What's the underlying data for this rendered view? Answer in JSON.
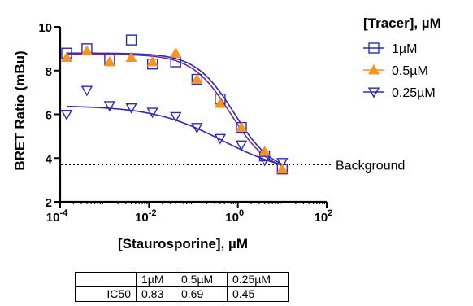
{
  "chart_data": {
    "type": "scatter",
    "xlabel": "[Staurosporine], µM",
    "ylabel": "BRET Ratio (mBu)",
    "xscale": "log",
    "xlim": [
      0.0001,
      100
    ],
    "ylim": [
      2,
      10
    ],
    "x_ticks": [
      {
        "value": 0.0001,
        "base": "10",
        "exp": "-4"
      },
      {
        "value": 0.01,
        "base": "10",
        "exp": "-2"
      },
      {
        "value": 1,
        "base": "10",
        "exp": "0"
      },
      {
        "value": 100,
        "base": "10",
        "exp": "2"
      }
    ],
    "y_ticks": [
      2,
      4,
      6,
      8,
      10
    ],
    "grid": false,
    "legend": {
      "title": "[Tracer], µM",
      "position": "right"
    },
    "series": [
      {
        "name": "1µM",
        "marker": "square",
        "color": "#2b2bb8",
        "fill": "none",
        "x": [
          0.00014,
          0.0004,
          0.0013,
          0.004,
          0.012,
          0.04,
          0.12,
          0.4,
          1.2,
          4,
          10
        ],
        "y": [
          8.8,
          9.0,
          8.5,
          9.4,
          8.3,
          8.4,
          7.6,
          6.7,
          5.4,
          4.1,
          3.5
        ],
        "fit": {
          "top": 8.8,
          "bottom": 3.3,
          "ic50": 0.83,
          "hill": 1
        }
      },
      {
        "name": "0.5µM",
        "marker": "triangle-up",
        "color": "#f7941d",
        "fill": "#f7941d",
        "x": [
          0.00014,
          0.0004,
          0.0013,
          0.004,
          0.012,
          0.04,
          0.12,
          0.4,
          1.2,
          4,
          10
        ],
        "y": [
          8.6,
          8.9,
          8.4,
          8.6,
          8.4,
          8.8,
          7.6,
          6.5,
          5.4,
          4.3,
          3.5
        ],
        "fit": {
          "top": 8.75,
          "bottom": 3.3,
          "ic50": 0.69,
          "hill": 1
        }
      },
      {
        "name": "0.25µM",
        "marker": "triangle-down",
        "color": "#2b2bb8",
        "fill": "none",
        "x": [
          0.00014,
          0.0004,
          0.0013,
          0.004,
          0.012,
          0.04,
          0.12,
          0.4,
          1.2,
          4,
          10
        ],
        "y": [
          6.0,
          7.1,
          6.4,
          6.3,
          6.1,
          5.9,
          5.4,
          4.9,
          4.6,
          3.9,
          3.8
        ],
        "fit": {
          "top": 6.4,
          "bottom": 3.2,
          "ic50": 0.45,
          "hill": 0.55
        }
      }
    ],
    "annotations": [
      {
        "text": "Background",
        "y": 3.7,
        "style": "dotted-line"
      }
    ],
    "table": {
      "columns": [
        "",
        "1µM",
        "0.5µM",
        "0.25µM"
      ],
      "rows": [
        [
          "IC50",
          "0.83",
          "0.69",
          "0.45"
        ]
      ]
    }
  }
}
